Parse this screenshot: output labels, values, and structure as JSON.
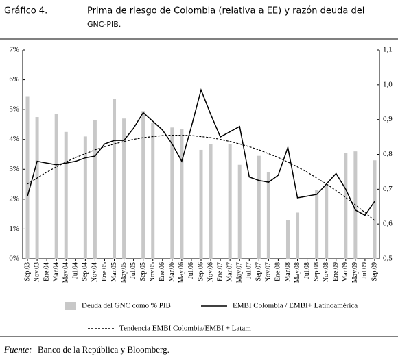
{
  "chart_data": {
    "type": "bar",
    "figure_label": "Gráfico 4.",
    "title": [
      "Prima de riesgo de Colombia (relativa a EE) y razón deuda del",
      "GNC-PIB."
    ],
    "categories": [
      "Sep.03",
      "Nov.03",
      "Ene.04",
      "Mar.04",
      "May.04",
      "Jul.04",
      "Sep.04",
      "Nov.04",
      "Ene.05",
      "Mar.05",
      "May.05",
      "Jul.05",
      "Sep.05",
      "Nov.05",
      "Ene.06",
      "Mar.06",
      "May.06",
      "Jul.06",
      "Sep.06",
      "Nov.06",
      "Ene.07",
      "Mar.07",
      "May.07",
      "Jul.07",
      "Sep.07",
      "Nov.07",
      "Ene.08",
      "Mar.08",
      "May.08",
      "Jul.08",
      "Sep.08",
      "Nov.08",
      "Ene.09",
      "Mar.09",
      "May.09",
      "Jul.09",
      "Sep.09"
    ],
    "series": [
      {
        "name": "Deuda del GNC como % PIB",
        "type": "bar",
        "color": "#c8c8c8",
        "values": [
          5.45,
          4.75,
          null,
          4.85,
          4.25,
          null,
          4.1,
          4.65,
          null,
          5.35,
          4.7,
          null,
          4.95,
          4.55,
          null,
          4.4,
          4.35,
          null,
          3.65,
          3.85,
          null,
          3.85,
          3.15,
          null,
          3.45,
          2.9,
          null,
          1.3,
          1.55,
          null,
          2.3,
          2.5,
          null,
          3.55,
          3.6,
          null,
          3.3
        ]
      },
      {
        "name": "EMBI Colombia / EMBI+ Latinoamérica",
        "type": "line",
        "axis": "y2",
        "color": "#000000",
        "dashed": false,
        "values": [
          0.68,
          0.78,
          0.775,
          0.77,
          0.775,
          0.78,
          0.79,
          0.795,
          0.83,
          0.84,
          0.84,
          0.875,
          0.92,
          0.895,
          0.87,
          0.83,
          0.78,
          0.88,
          0.985,
          0.915,
          0.85,
          0.865,
          0.88,
          0.735,
          0.725,
          0.72,
          0.74,
          0.82,
          0.675,
          0.68,
          0.685,
          0.715,
          0.745,
          0.7,
          0.64,
          0.625,
          0.665
        ]
      },
      {
        "name": "Tendencia EMBI Colombia/EMBI + Latam",
        "type": "line",
        "axis": "y2",
        "color": "#000000",
        "dashed": true,
        "values": [
          0.715,
          0.732,
          0.749,
          0.764,
          0.778,
          0.791,
          0.802,
          0.813,
          0.822,
          0.83,
          0.837,
          0.843,
          0.848,
          0.851,
          0.854,
          0.855,
          0.855,
          0.854,
          0.851,
          0.848,
          0.843,
          0.837,
          0.83,
          0.822,
          0.813,
          0.802,
          0.791,
          0.778,
          0.764,
          0.749,
          0.732,
          0.715,
          0.696,
          0.676,
          0.655,
          0.633,
          0.61
        ]
      }
    ],
    "ylim": [
      0,
      7
    ],
    "yticks": [
      {
        "value": 0,
        "label": "0%"
      },
      {
        "value": 1,
        "label": "1%"
      },
      {
        "value": 2,
        "label": "2%"
      },
      {
        "value": 3,
        "label": "3%"
      },
      {
        "value": 4,
        "label": "4%"
      },
      {
        "value": 5,
        "label": "5%"
      },
      {
        "value": 6,
        "label": "6%"
      },
      {
        "value": 7,
        "label": "7%"
      }
    ],
    "y2lim": [
      0.5,
      1.1
    ],
    "y2ticks": [
      {
        "value": 0.5,
        "label": "0,5"
      },
      {
        "value": 0.6,
        "label": "0,6"
      },
      {
        "value": 0.7,
        "label": "0,7"
      },
      {
        "value": 0.8,
        "label": "0,8"
      },
      {
        "value": 0.9,
        "label": "0,9"
      },
      {
        "value": 1.0,
        "label": "1,0"
      },
      {
        "value": 1.1,
        "label": "1,1"
      }
    ],
    "source_label": "Fuente:",
    "source_text": "Banco de la República y Bloomberg."
  }
}
